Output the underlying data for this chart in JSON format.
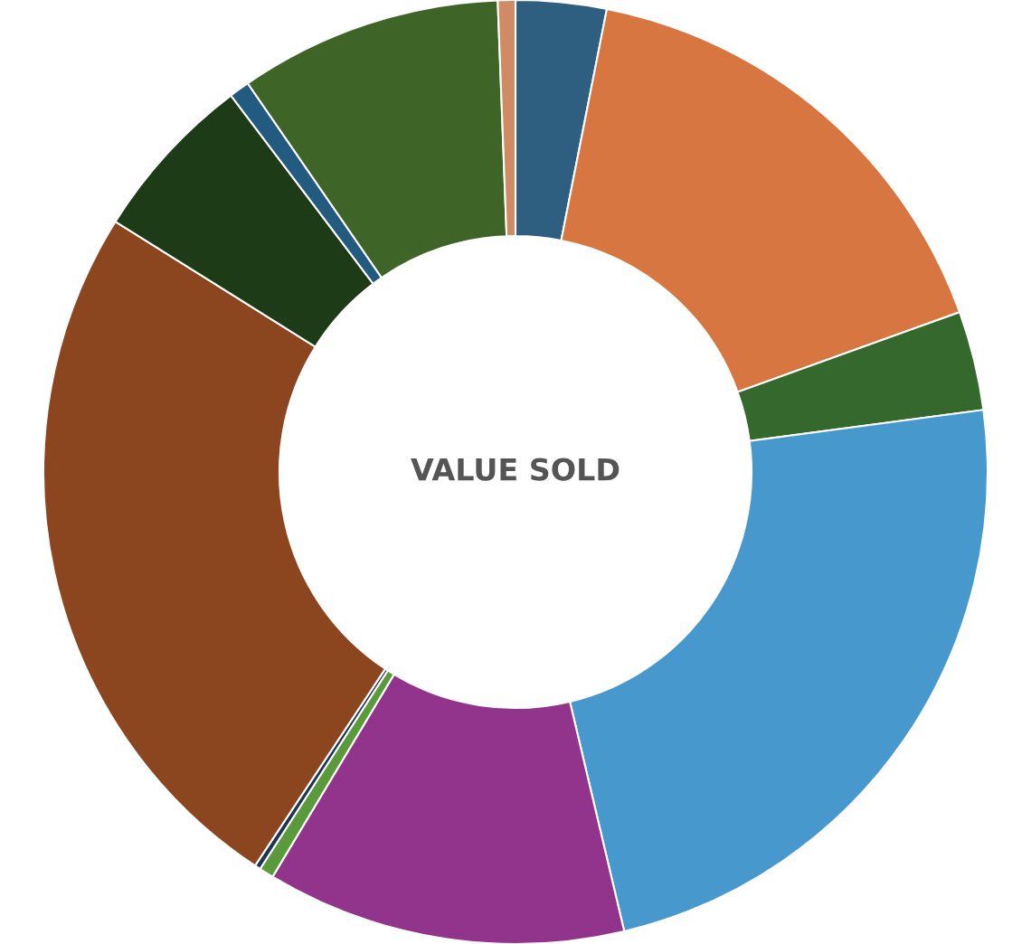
{
  "chart_data": {
    "type": "donut",
    "title": "VALUE SOLD",
    "categories": [
      null,
      null,
      null,
      null,
      null,
      null,
      null,
      null,
      null,
      null,
      null,
      null
    ],
    "values": [
      3.1,
      16.4,
      3.4,
      23.4,
      12.3,
      0.5,
      0.2,
      24.6,
      5.8,
      0.7,
      9.0,
      0.6
    ],
    "colors": [
      "#2e5f80",
      "#d77640",
      "#34682c",
      "#4799cd",
      "#92348b",
      "#5a9a3a",
      "#1c3550",
      "#8b451f",
      "#1e3b18",
      "#235b80",
      "#3e6527",
      "#d08a64"
    ]
  }
}
